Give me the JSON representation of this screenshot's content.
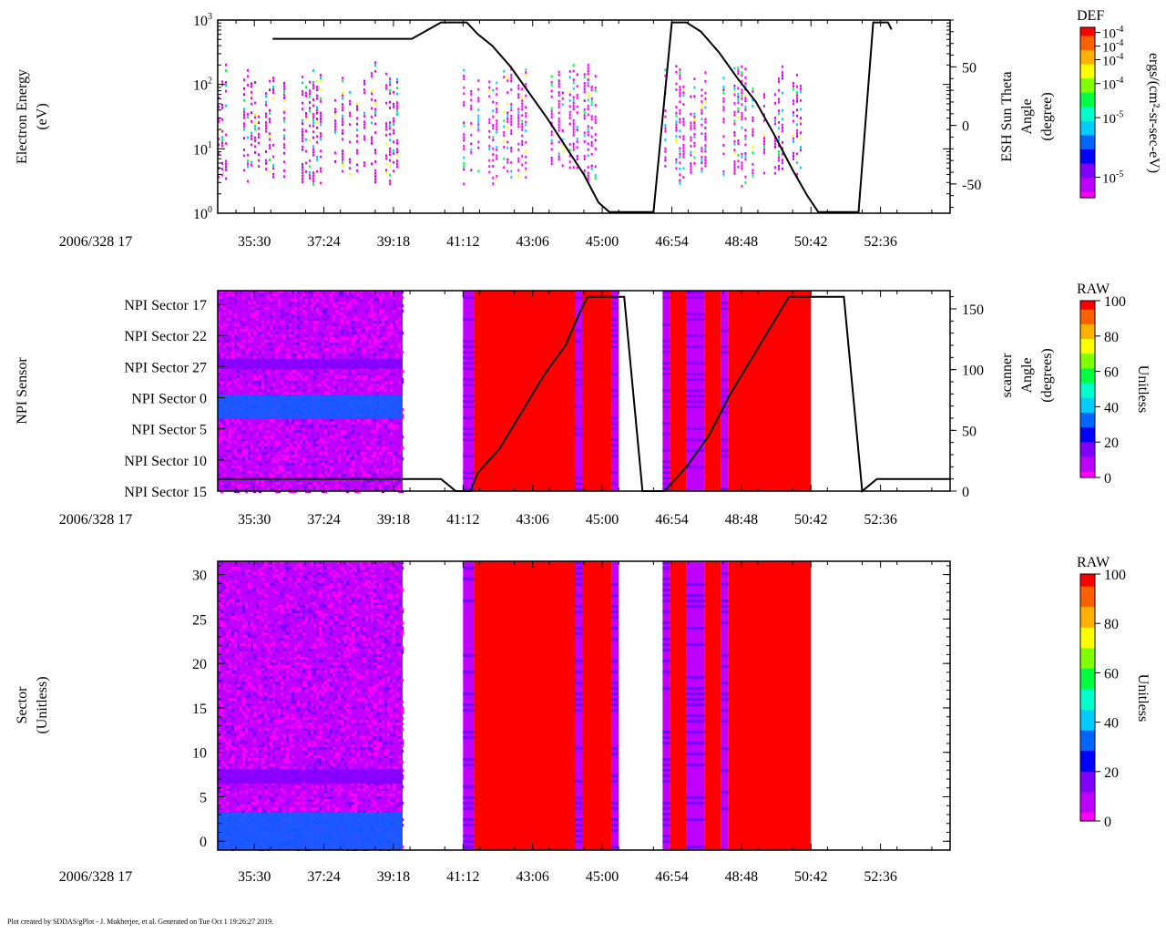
{
  "footer": "Plot created by SDDAS/gPlot - J. Mukherjee, et al.  Generated on Tue Oct 1 19:26:27 2019.",
  "time_axis": {
    "date_label": "2006/328 17",
    "tick_labels": [
      "35:30",
      "37:24",
      "39:18",
      "41:12",
      "43:06",
      "45:00",
      "46:54",
      "48:48",
      "50:42",
      "52:36"
    ],
    "tick_minutes": [
      35.5,
      37.4,
      39.3,
      41.2,
      43.1,
      45.0,
      46.9,
      48.8,
      50.7,
      52.6
    ],
    "range_minutes": [
      34.5,
      54.5
    ]
  },
  "colors": {
    "palette": [
      "#ff00ff",
      "#c000ff",
      "#8000ff",
      "#0000ff",
      "#0066ff",
      "#00ccff",
      "#00ffcc",
      "#00ff40",
      "#80ff00",
      "#ffff00",
      "#ffb000",
      "#ff6000",
      "#ff0000"
    ]
  },
  "chart_data": [
    {
      "type": "heatmap",
      "panel": "electron-energy",
      "ylabel": [
        "Electron Energy",
        "(eV)"
      ],
      "y_scale": "log",
      "ylim": [
        1,
        1000
      ],
      "y_ticks": [
        {
          "base": "10",
          "exp": "0"
        },
        {
          "base": "10",
          "exp": "1"
        },
        {
          "base": "10",
          "exp": "2"
        },
        {
          "base": "10",
          "exp": "3"
        }
      ],
      "right_ylabel": [
        "ESH Sun Theta",
        "Angle",
        "(degree)"
      ],
      "right_ylim": [
        -75,
        90
      ],
      "right_ticks": [
        "50",
        "0",
        "-50"
      ],
      "right_tick_values": [
        50,
        0,
        -50
      ],
      "colorbar": {
        "title": "DEF",
        "label": "ergs/(cm²-sr-sec-eV)",
        "scale": "log",
        "tick_labels": [
          {
            "base": "10",
            "exp": "-4"
          },
          {
            "base": "10",
            "exp": "-4"
          },
          {
            "base": "10",
            "exp": "-4"
          },
          {
            "base": "10",
            "exp": "-4"
          },
          {
            "base": "10",
            "exp": "-5"
          },
          {
            "base": "10",
            "exp": "-5"
          }
        ],
        "tick_fractions": [
          0.97,
          0.89,
          0.81,
          0.67,
          0.47,
          0.12
        ]
      },
      "data_segments_minutes": [
        [
          34.5,
          39.5
        ],
        [
          41.2,
          42.9
        ],
        [
          43.0,
          44.8
        ],
        [
          46.7,
          49.2
        ],
        [
          49.3,
          50.4
        ]
      ],
      "angle_line": [
        [
          36.0,
          74
        ],
        [
          39.8,
          74
        ],
        [
          40.6,
          88
        ],
        [
          41.3,
          88
        ],
        [
          41.6,
          78
        ],
        [
          42.0,
          68
        ],
        [
          42.5,
          50
        ],
        [
          43.0,
          28
        ],
        [
          43.5,
          6
        ],
        [
          44.0,
          -18
        ],
        [
          44.5,
          -42
        ],
        [
          44.9,
          -66
        ],
        [
          45.2,
          -74
        ],
        [
          46.4,
          -74
        ],
        [
          46.9,
          88
        ],
        [
          47.3,
          88
        ],
        [
          47.7,
          80
        ],
        [
          48.2,
          62
        ],
        [
          48.7,
          40
        ],
        [
          49.2,
          20
        ],
        [
          49.7,
          -8
        ],
        [
          50.2,
          -38
        ],
        [
          50.6,
          -60
        ],
        [
          50.9,
          -74
        ],
        [
          52.0,
          -74
        ],
        [
          52.4,
          88
        ],
        [
          52.8,
          88
        ],
        [
          52.9,
          82
        ]
      ]
    },
    {
      "type": "heatmap",
      "panel": "npi-sensor",
      "ylabel": [
        "NPI Sensor"
      ],
      "y_categories": [
        "NPI Sector 17",
        "NPI Sector 22",
        "NPI Sector 27",
        "NPI Sector 0",
        "NPI Sector 5",
        "NPI Sector 10",
        "NPI Sector 15"
      ],
      "right_ylabel": [
        "scanner",
        "Angle",
        "(degrees)"
      ],
      "right_ylim": [
        0,
        165
      ],
      "right_ticks": [
        "150",
        "100",
        "50",
        "0"
      ],
      "right_tick_values": [
        150,
        100,
        50,
        0
      ],
      "colorbar": {
        "title": "RAW",
        "label": "Unitless",
        "ylim": [
          0,
          100
        ],
        "tick_labels": [
          "100",
          "80",
          "60",
          "40",
          "20",
          "0"
        ],
        "tick_values": [
          100,
          80,
          60,
          40,
          20,
          0
        ]
      },
      "blocks": [
        {
          "start": 34.5,
          "end": 39.55,
          "value": 8
        },
        {
          "start": 41.2,
          "end": 41.5,
          "value": 5
        },
        {
          "start": 41.5,
          "end": 44.25,
          "value": 100
        },
        {
          "start": 44.25,
          "end": 44.45,
          "value": 5
        },
        {
          "start": 44.45,
          "end": 45.25,
          "value": 100
        },
        {
          "start": 45.25,
          "end": 45.45,
          "value": 7
        },
        {
          "start": 46.65,
          "end": 46.85,
          "value": 6
        },
        {
          "start": 46.85,
          "end": 47.3,
          "value": 100
        },
        {
          "start": 47.3,
          "end": 47.8,
          "value": 6
        },
        {
          "start": 47.8,
          "end": 48.25,
          "value": 100
        },
        {
          "start": 48.25,
          "end": 48.45,
          "value": 5
        },
        {
          "start": 48.45,
          "end": 50.7,
          "value": 100
        }
      ],
      "angle_line": [
        [
          34.5,
          10
        ],
        [
          39.5,
          10
        ],
        [
          40.6,
          10
        ],
        [
          41.0,
          0
        ],
        [
          41.4,
          0
        ],
        [
          41.6,
          15
        ],
        [
          42.2,
          35
        ],
        [
          42.8,
          65
        ],
        [
          43.4,
          95
        ],
        [
          44.0,
          120
        ],
        [
          44.4,
          148
        ],
        [
          44.6,
          160
        ],
        [
          45.6,
          160
        ],
        [
          46.1,
          0
        ],
        [
          46.7,
          0
        ],
        [
          47.3,
          20
        ],
        [
          47.9,
          45
        ],
        [
          48.5,
          80
        ],
        [
          49.1,
          110
        ],
        [
          49.7,
          140
        ],
        [
          50.1,
          160
        ],
        [
          51.6,
          160
        ],
        [
          52.1,
          0
        ],
        [
          52.5,
          10
        ],
        [
          54.5,
          10
        ]
      ]
    },
    {
      "type": "heatmap",
      "panel": "sector",
      "ylabel": [
        "Sector",
        "(Unitless)"
      ],
      "ylim": [
        -1,
        31.5
      ],
      "y_ticks": [
        "30",
        "25",
        "20",
        "15",
        "10",
        "5",
        "0"
      ],
      "y_tick_values": [
        30,
        25,
        20,
        15,
        10,
        5,
        0
      ],
      "colorbar": {
        "title": "RAW",
        "label": "Unitless",
        "ylim": [
          0,
          100
        ],
        "tick_labels": [
          "100",
          "80",
          "60",
          "40",
          "20",
          "0"
        ],
        "tick_values": [
          100,
          80,
          60,
          40,
          20,
          0
        ]
      },
      "blocks": [
        {
          "start": 34.5,
          "end": 39.55,
          "value": 8
        },
        {
          "start": 41.2,
          "end": 41.5,
          "value": 5
        },
        {
          "start": 41.5,
          "end": 44.25,
          "value": 100
        },
        {
          "start": 44.25,
          "end": 44.45,
          "value": 5
        },
        {
          "start": 44.45,
          "end": 45.25,
          "value": 100
        },
        {
          "start": 45.25,
          "end": 45.45,
          "value": 7
        },
        {
          "start": 46.65,
          "end": 46.85,
          "value": 6
        },
        {
          "start": 46.85,
          "end": 47.3,
          "value": 100
        },
        {
          "start": 47.3,
          "end": 47.8,
          "value": 6
        },
        {
          "start": 47.8,
          "end": 48.25,
          "value": 100
        },
        {
          "start": 48.25,
          "end": 48.45,
          "value": 5
        },
        {
          "start": 48.45,
          "end": 50.7,
          "value": 100
        }
      ]
    }
  ]
}
